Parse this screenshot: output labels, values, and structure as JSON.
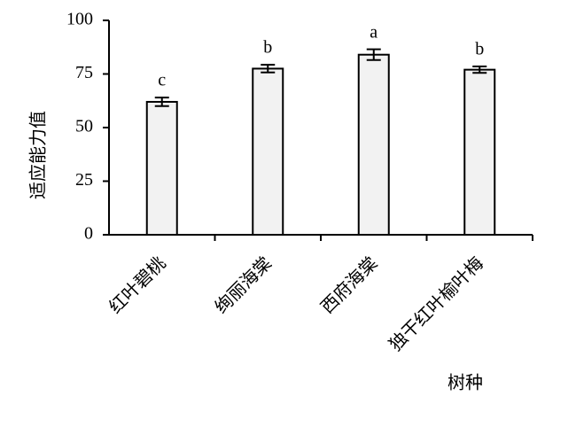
{
  "chart_data": {
    "type": "bar",
    "categories": [
      "红叶碧桃",
      "绚丽海棠",
      "西府海棠",
      "独干红叶榆叶梅"
    ],
    "values": [
      62,
      77.5,
      84,
      77
    ],
    "errors": [
      2,
      1.8,
      2.5,
      1.5
    ],
    "annotations": [
      "c",
      "b",
      "a",
      "b"
    ],
    "color": "#f2f2f2",
    "ylabel": "适应能力值",
    "xlabel": "树种",
    "ylim": [
      0,
      100
    ],
    "yticks": [
      0,
      25,
      50,
      75,
      100
    ],
    "grid": false
  }
}
